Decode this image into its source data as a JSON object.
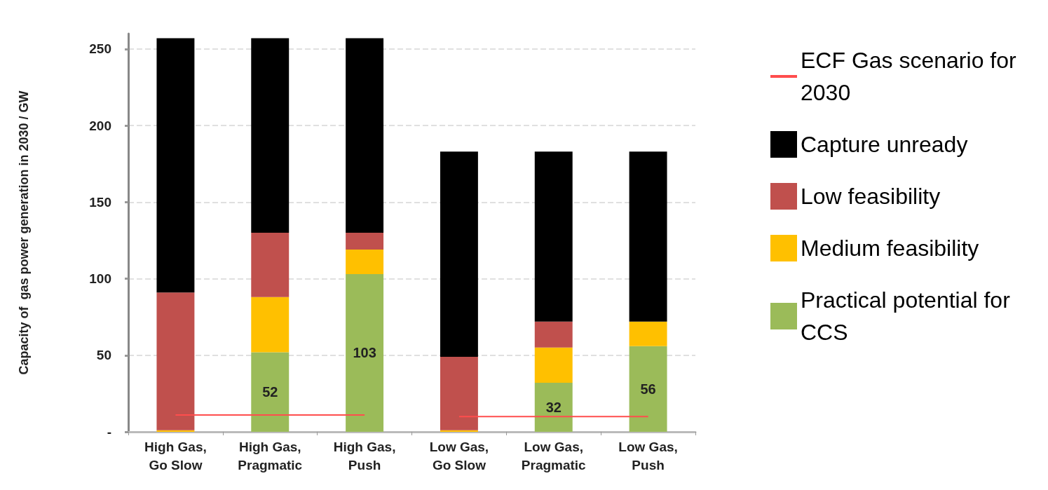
{
  "chart_data": {
    "type": "bar",
    "stacked": true,
    "ylabel": "Capacity of  gas power generation in 2030 / GW",
    "categories": [
      "High Gas,\nGo Slow",
      "High Gas,\nPragmatic",
      "High Gas,\nPush",
      "Low Gas,\nGo Slow",
      "Low Gas,\nPragmatic",
      "Low Gas,\nPush"
    ],
    "series": [
      {
        "name": "Practical potential for CCS",
        "color": "#9bbb59",
        "values": [
          0,
          52,
          103,
          0,
          32,
          56
        ],
        "value_labels": [
          null,
          "52",
          "103",
          null,
          "32",
          "56"
        ]
      },
      {
        "name": "Medium feasibility",
        "color": "#ffc000",
        "values": [
          1,
          36,
          16,
          1,
          23,
          16
        ]
      },
      {
        "name": "Low feasibility",
        "color": "#c0504d",
        "values": [
          90,
          42,
          11,
          48,
          17,
          0
        ]
      },
      {
        "name": "Capture unready",
        "color": "#000000",
        "values": [
          166,
          127,
          127,
          134,
          111,
          111
        ]
      },
      {
        "name": "ECF Gas scenario for 2030",
        "type": "line",
        "color": "#ff4d4d",
        "values": [
          11,
          11,
          11,
          null,
          null,
          null
        ]
      },
      {
        "type": "line",
        "color": "#ff4d4d",
        "values": [
          null,
          null,
          null,
          10,
          10,
          10
        ]
      }
    ],
    "ylim": [
      0,
      260
    ],
    "yticks": [
      {
        "value": 0,
        "label": "-"
      },
      50,
      100,
      150,
      200,
      250
    ],
    "grid": "y",
    "legend": "right",
    "marker": "none"
  }
}
